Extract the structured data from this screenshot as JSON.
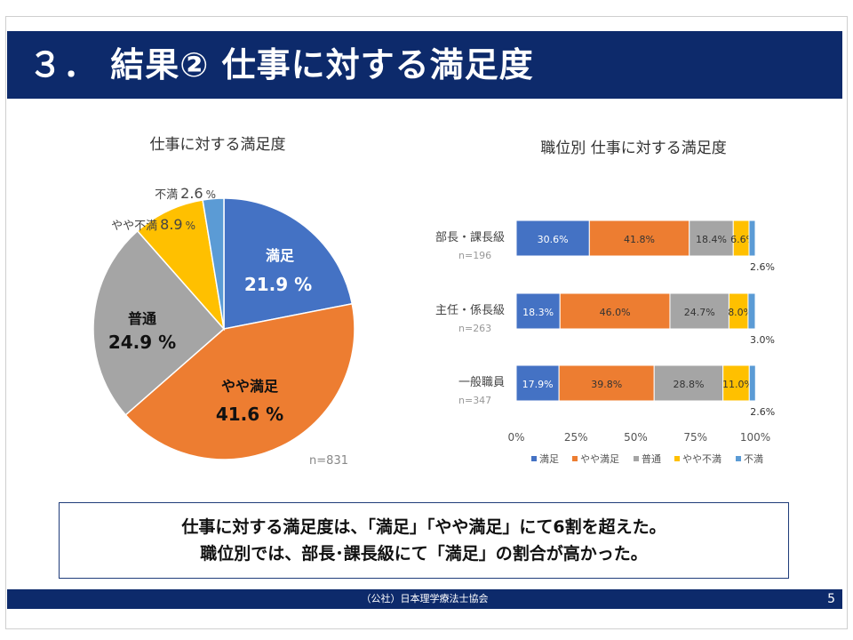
{
  "slide": {
    "title": "３． 結果② 仕事に対する満足度",
    "summary_line1": "仕事に対する満足度は、「満足」「やや満足」にて6割を超えた。",
    "summary_line2": "職位別では、部長･課長級にて「満足」の割合が高かった。",
    "footer_org": "（公社）日本理学療法士協会",
    "page_number": "5"
  },
  "colors": {
    "header": "#0d2a6b",
    "manzoku": "#4472c4",
    "yaya_manzoku": "#ed7d31",
    "futsu": "#a5a5a5",
    "yaya_fuman": "#ffc000",
    "fuman": "#5b9bd5"
  },
  "chart_data": [
    {
      "type": "pie",
      "title": "仕事に対する満足度",
      "sample_size": "n=831",
      "slices": [
        {
          "label": "満足",
          "value": 21.9,
          "display": "21.9 %"
        },
        {
          "label": "やや満足",
          "value": 41.6,
          "display": "41.6 %"
        },
        {
          "label": "普通",
          "value": 24.9,
          "display": "24.9 %"
        },
        {
          "label": "やや不満",
          "value": 8.9,
          "display": "8.9 %"
        },
        {
          "label": "不満",
          "value": 2.6,
          "display": "2.6 %"
        }
      ]
    },
    {
      "type": "bar",
      "stacked": true,
      "orientation": "horizontal",
      "title": "職位別 仕事に対する満足度",
      "categories": [
        "部長・課長級",
        "主任・係長級",
        "一般職員"
      ],
      "category_n": [
        "n=196",
        "n=263",
        "n=347"
      ],
      "series": [
        {
          "name": "満足",
          "values": [
            30.6,
            18.3,
            17.9
          ]
        },
        {
          "name": "やや満足",
          "values": [
            41.8,
            46.0,
            39.8
          ]
        },
        {
          "name": "普通",
          "values": [
            18.4,
            24.7,
            28.8
          ]
        },
        {
          "name": "やや不満",
          "values": [
            6.6,
            8.0,
            11.0
          ]
        },
        {
          "name": "不満",
          "values": [
            2.6,
            3.0,
            2.6
          ]
        }
      ],
      "data_labels": [
        [
          "30.6%",
          "41.8%",
          "18.4%",
          "6.6%",
          "2.6%"
        ],
        [
          "18.3%",
          "46.0%",
          "24.7%",
          "8.0%",
          "3.0%"
        ],
        [
          "17.9%",
          "39.8%",
          "28.8%",
          "11.0%",
          "2.6%"
        ]
      ],
      "xlim": [
        0,
        100
      ],
      "x_ticks": [
        "0%",
        "25%",
        "50%",
        "75%",
        "100%"
      ],
      "legend_position": "bottom",
      "grid": false
    }
  ]
}
